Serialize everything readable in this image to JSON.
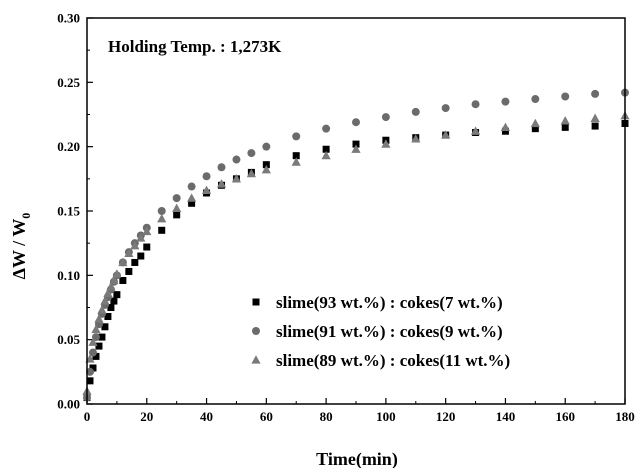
{
  "chart_data": {
    "type": "scatter",
    "title": "",
    "annotation": "Holding Temp. : 1,273K",
    "xlabel": "Time(min)",
    "ylabel_main": "ΔW / W",
    "ylabel_sub": "0",
    "xlim": [
      0,
      180
    ],
    "ylim": [
      0,
      0.3
    ],
    "x_ticks": [
      "0",
      "20",
      "40",
      "60",
      "80",
      "100",
      "120",
      "140",
      "160",
      "180"
    ],
    "y_ticks": [
      "0.00",
      "0.05",
      "0.10",
      "0.15",
      "0.20",
      "0.25",
      "0.30"
    ],
    "grid": false,
    "legend_position": "bottom-right",
    "series": [
      {
        "name": "slime(93 wt.%) : cokes(7 wt.%)",
        "marker": "square",
        "color": "#000000",
        "x": [
          0,
          1,
          2,
          3,
          4,
          5,
          6,
          7,
          8,
          9,
          10,
          12,
          14,
          16,
          18,
          20,
          25,
          30,
          35,
          40,
          45,
          50,
          55,
          60,
          70,
          80,
          90,
          100,
          110,
          120,
          130,
          140,
          150,
          160,
          170,
          180
        ],
        "y": [
          0.005,
          0.018,
          0.028,
          0.037,
          0.045,
          0.052,
          0.06,
          0.068,
          0.075,
          0.08,
          0.085,
          0.096,
          0.103,
          0.11,
          0.115,
          0.122,
          0.135,
          0.147,
          0.156,
          0.164,
          0.17,
          0.175,
          0.18,
          0.186,
          0.193,
          0.198,
          0.202,
          0.205,
          0.207,
          0.209,
          0.211,
          0.212,
          0.214,
          0.215,
          0.216,
          0.218
        ]
      },
      {
        "name": "slime(91 wt.%) : cokes(9 wt.%)",
        "marker": "circle",
        "color": "#6b6b6b",
        "x": [
          0,
          1,
          2,
          3,
          4,
          5,
          6,
          7,
          8,
          9,
          10,
          12,
          14,
          16,
          18,
          20,
          25,
          30,
          35,
          40,
          45,
          50,
          55,
          60,
          70,
          80,
          90,
          100,
          110,
          120,
          130,
          140,
          150,
          160,
          170,
          180
        ],
        "y": [
          0.005,
          0.025,
          0.04,
          0.052,
          0.062,
          0.07,
          0.077,
          0.083,
          0.089,
          0.095,
          0.1,
          0.11,
          0.118,
          0.125,
          0.131,
          0.137,
          0.15,
          0.16,
          0.169,
          0.177,
          0.184,
          0.19,
          0.195,
          0.2,
          0.208,
          0.214,
          0.219,
          0.223,
          0.227,
          0.23,
          0.233,
          0.235,
          0.237,
          0.239,
          0.241,
          0.242
        ]
      },
      {
        "name": "slime(89 wt.%) : cokes(11 wt.%)",
        "marker": "triangle",
        "color": "#7a7a7a",
        "x": [
          0,
          1,
          2,
          3,
          4,
          5,
          6,
          7,
          8,
          9,
          10,
          12,
          14,
          16,
          18,
          20,
          25,
          30,
          35,
          40,
          45,
          50,
          55,
          60,
          70,
          80,
          90,
          100,
          110,
          120,
          130,
          140,
          150,
          160,
          170,
          180
        ],
        "y": [
          0.01,
          0.035,
          0.048,
          0.058,
          0.066,
          0.073,
          0.08,
          0.086,
          0.091,
          0.096,
          0.101,
          0.11,
          0.117,
          0.123,
          0.129,
          0.134,
          0.144,
          0.152,
          0.16,
          0.166,
          0.171,
          0.175,
          0.179,
          0.182,
          0.188,
          0.193,
          0.198,
          0.202,
          0.206,
          0.209,
          0.212,
          0.215,
          0.218,
          0.22,
          0.222,
          0.224
        ]
      }
    ]
  }
}
